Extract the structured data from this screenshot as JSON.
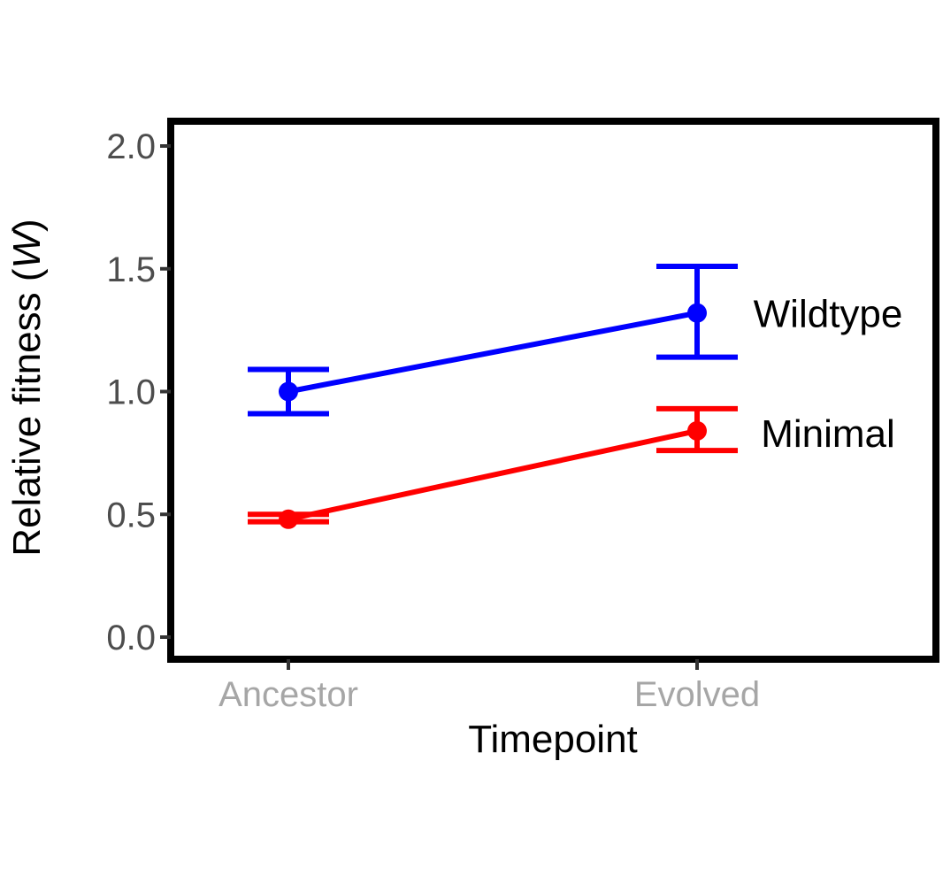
{
  "chart_data": {
    "type": "line",
    "title": "",
    "xlabel": "Timepoint",
    "ylabel_prefix": "Relative fitness (",
    "ylabel_italic": "W",
    "ylabel_suffix": ")",
    "categories": [
      "Ancestor",
      "Evolved"
    ],
    "ylim": [
      -0.1,
      2.1
    ],
    "yticks": [
      0.0,
      0.5,
      1.0,
      1.5,
      2.0
    ],
    "ytick_labels": [
      "0.0",
      "0.5",
      "1.0",
      "1.5",
      "2.0"
    ],
    "grid": false,
    "legend": "direct labels at right of lines",
    "series": [
      {
        "name": "Wildtype",
        "color": "#0000ff",
        "values": [
          1.0,
          1.32
        ],
        "error_low": [
          0.91,
          1.14
        ],
        "error_high": [
          1.09,
          1.51
        ]
      },
      {
        "name": "Minimal",
        "color": "#ff0000",
        "values": [
          0.48,
          0.84
        ],
        "error_low": [
          0.47,
          0.76
        ],
        "error_high": [
          0.5,
          0.93
        ]
      }
    ]
  }
}
